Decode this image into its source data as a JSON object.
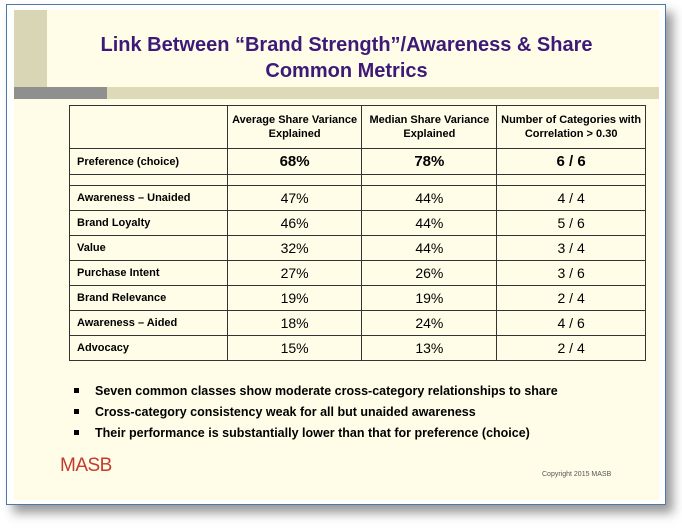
{
  "title": {
    "line1": "Link Between “Brand Strength”/Awareness & Share",
    "line2": "Common Metrics"
  },
  "table": {
    "headers": [
      "Average Share Variance Explained",
      "Median Share Variance Explained",
      "Number of Categories with Correlation > 0.30"
    ],
    "preference": {
      "label": "Preference (choice)",
      "avg": "68%",
      "median": "78%",
      "count": "6 / 6"
    },
    "rows": [
      {
        "label": "Awareness – Unaided",
        "avg": "47%",
        "median": "44%",
        "count": "4 / 4"
      },
      {
        "label": "Brand Loyalty",
        "avg": "46%",
        "median": "44%",
        "count": "5 / 6"
      },
      {
        "label": "Value",
        "avg": "32%",
        "median": "44%",
        "count": "3 / 4"
      },
      {
        "label": "Purchase Intent",
        "avg": "27%",
        "median": "26%",
        "count": "3 / 6"
      },
      {
        "label": "Brand Relevance",
        "avg": "19%",
        "median": "19%",
        "count": "2 / 4"
      },
      {
        "label": "Awareness – Aided",
        "avg": "18%",
        "median": "24%",
        "count": "4 / 6"
      },
      {
        "label": "Advocacy",
        "avg": "15%",
        "median": "13%",
        "count": "2 / 4"
      }
    ]
  },
  "bullets": [
    "Seven common classes show moderate cross-category relationships to share",
    "Cross-category consistency weak for all but unaided awareness",
    "Their performance is substantially lower than that for preference (choice)"
  ],
  "logo": "MASB",
  "copyright": "Copyright 2015 MASB",
  "colors": {
    "title": "#3d1a78",
    "slide_background": "#fffde8",
    "logo": "#c43a2c",
    "accent_bar": "#dcdab7"
  }
}
